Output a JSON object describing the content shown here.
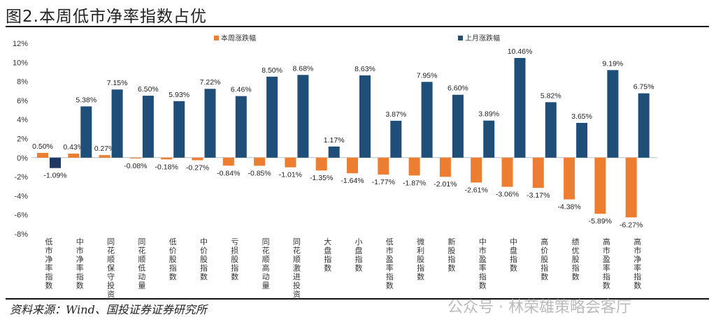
{
  "title": "图2.本周低市净率指数占优",
  "source": "资料来源：Wind、国投证券证券研究所",
  "watermark": "公众号 · 林荣雄策略会客厅",
  "colors": {
    "this_week": "#ED7D31",
    "last_month": "#1F4E79",
    "highlight": "#1F3864"
  },
  "chart_data": {
    "type": "bar",
    "title": "图2.本周低市净率指数占优",
    "ylim": [
      -8,
      12
    ],
    "yticks": [
      "-8%",
      "-6%",
      "-4%",
      "-2%",
      "0%",
      "2%",
      "4%",
      "6%",
      "8%",
      "10%",
      "12%"
    ],
    "legend": "top",
    "categories": [
      "低市净率指数",
      "中市净率指数",
      "同花顺保守投资",
      "同花顺低动量",
      "低价股指数",
      "中价股指数",
      "亏损股指数",
      "同花顺高动量",
      "同花顺激进投资",
      "大盘指数",
      "小盘指数",
      "低市盈率指数",
      "微利股指数",
      "新股指数",
      "中市盈率指数",
      "中盘指数",
      "高价股指数",
      "绩优股指数",
      "高市盈率指数",
      "高市净率指数"
    ],
    "series": [
      {
        "name": "本周涨跌幅",
        "values": [
          0.5,
          0.43,
          0.27,
          -0.08,
          -0.18,
          -0.27,
          -0.84,
          -0.85,
          -1.01,
          -1.35,
          -1.64,
          -1.77,
          -1.87,
          -2.01,
          -2.61,
          -3.06,
          -3.17,
          -4.38,
          -5.89,
          -6.27
        ]
      },
      {
        "name": "上月涨跌幅",
        "values": [
          -1.09,
          5.38,
          7.15,
          6.5,
          5.93,
          7.22,
          6.46,
          8.5,
          8.68,
          1.17,
          8.63,
          3.87,
          7.95,
          6.6,
          3.89,
          10.46,
          5.82,
          3.65,
          9.19,
          6.75
        ]
      }
    ]
  }
}
